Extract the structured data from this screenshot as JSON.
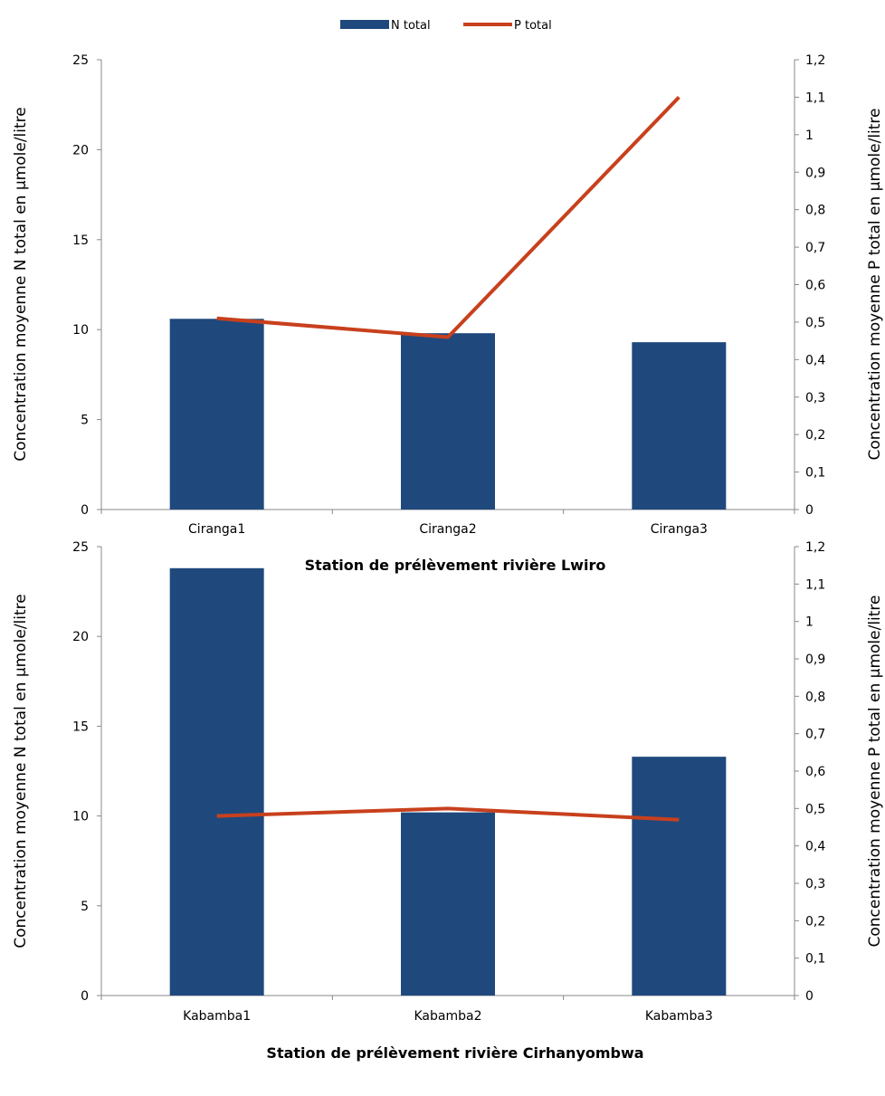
{
  "chart_data": [
    {
      "type": "bar",
      "categories": [
        "Ciranga1",
        "Ciranga2",
        "Ciranga3"
      ],
      "series": [
        {
          "name": "N total",
          "type": "bar",
          "axis": "left",
          "values": [
            10.6,
            9.8,
            9.3
          ]
        },
        {
          "name": "P total",
          "type": "line",
          "axis": "right",
          "values": [
            0.51,
            0.46,
            1.1
          ]
        }
      ],
      "xlabel": "Station de prélèvement rivière Lwiro",
      "ylabel": "Concentration moyenne N total en µmole/litre",
      "y2label": "Concentration moyenne  P total en µmole/litre",
      "ylim": [
        0,
        25
      ],
      "y2lim": [
        0,
        1.2
      ],
      "yticks": [
        "0",
        "5",
        "10",
        "15",
        "20",
        "25"
      ],
      "y2ticks": [
        "0",
        "0,1",
        "0,2",
        "0,3",
        "0,4",
        "0,5",
        "0,6",
        "0,7",
        "0,8",
        "0,9",
        "1",
        "1,1",
        "1,2"
      ],
      "legend": "top",
      "grid": false
    },
    {
      "type": "bar",
      "categories": [
        "Kabamba1",
        "Kabamba2",
        "Kabamba3"
      ],
      "series": [
        {
          "name": "N total",
          "type": "bar",
          "axis": "left",
          "values": [
            23.8,
            10.2,
            13.3
          ]
        },
        {
          "name": "P total",
          "type": "line",
          "axis": "right",
          "values": [
            0.48,
            0.5,
            0.47
          ]
        }
      ],
      "xlabel": "Station de prélèvement rivière Cirhanyombwa",
      "ylabel": "Concentration moyenne N total en µmole/litre",
      "y2label": "Concentration moyenne  P total en µmole/litre",
      "ylim": [
        0,
        25
      ],
      "y2lim": [
        0,
        1.2
      ],
      "yticks": [
        "0",
        "5",
        "10",
        "15",
        "20",
        "25"
      ],
      "y2ticks": [
        "0",
        "0,1",
        "0,2",
        "0,3",
        "0,4",
        "0,5",
        "0,6",
        "0,7",
        "0,8",
        "0,9",
        "1",
        "1,1",
        "1,2"
      ],
      "grid": false
    }
  ],
  "colors": {
    "bar": "#1f497d",
    "line": "#c8401d"
  }
}
